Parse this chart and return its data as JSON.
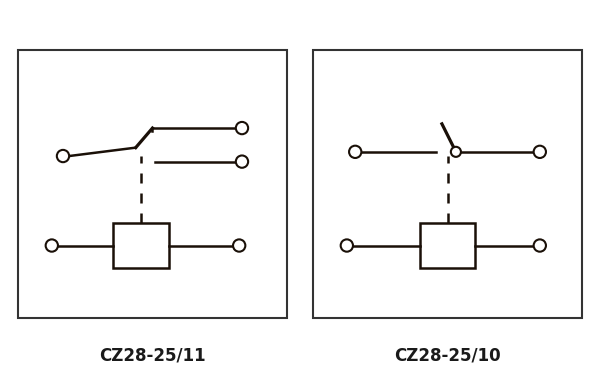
{
  "bg_color": "#ffffff",
  "line_color": "#1a1008",
  "fig_width": 6.0,
  "fig_height": 3.68,
  "label1": "CZ28-25/11",
  "label2": "CZ28-25/10",
  "border_color": "#333333"
}
